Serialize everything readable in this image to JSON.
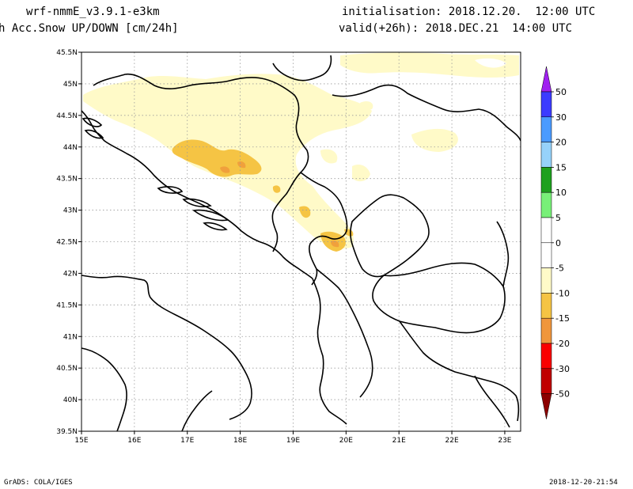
{
  "header": {
    "model": "wrf-nmmE_v3.9.1-e3km",
    "field": "h Acc.Snow UP/DOWN [cm/24h]",
    "init": "initialisation: 2018.12.20.  12:00 UTC",
    "valid": "valid(+26h): 2018.DEC.21  14:00 UTC"
  },
  "footer": {
    "left": "GrADS: COLA/IGES",
    "right": "2018-12-20-21:54"
  },
  "map": {
    "lon_labels": [
      "15E",
      "16E",
      "17E",
      "18E",
      "19E",
      "20E",
      "21E",
      "22E",
      "23E"
    ],
    "lat_labels": [
      "45.5N",
      "45N",
      "44.5N",
      "44N",
      "43.5N",
      "43N",
      "42.5N",
      "42N",
      "41.5N",
      "41N",
      "40.5N",
      "40N",
      "39.5N"
    ],
    "lon_range": [
      15,
      23.3
    ],
    "lat_range": [
      39.5,
      45.5
    ],
    "grid": "dotted",
    "colors": {
      "light": "#fffac8",
      "medium": "#f5c444",
      "dark": "#f0a03c",
      "border": "#000000"
    }
  },
  "legend": {
    "labels": [
      "50",
      "30",
      "20",
      "15",
      "10",
      "5",
      "0",
      "-5",
      "-10",
      "-15",
      "-20",
      "-30",
      "-50"
    ],
    "colors": [
      "#9f1ffc",
      "#3c3cff",
      "#4a9bff",
      "#96d2fa",
      "#1ea01e",
      "#78f078",
      "#ffffff",
      "#ffffff",
      "#fffac8",
      "#f5c444",
      "#f0963c",
      "#fa0000",
      "#c00000",
      "#8c0000"
    ],
    "top_arrow_color": "#a020f0",
    "bottom_arrow_color": "#8c0000"
  }
}
